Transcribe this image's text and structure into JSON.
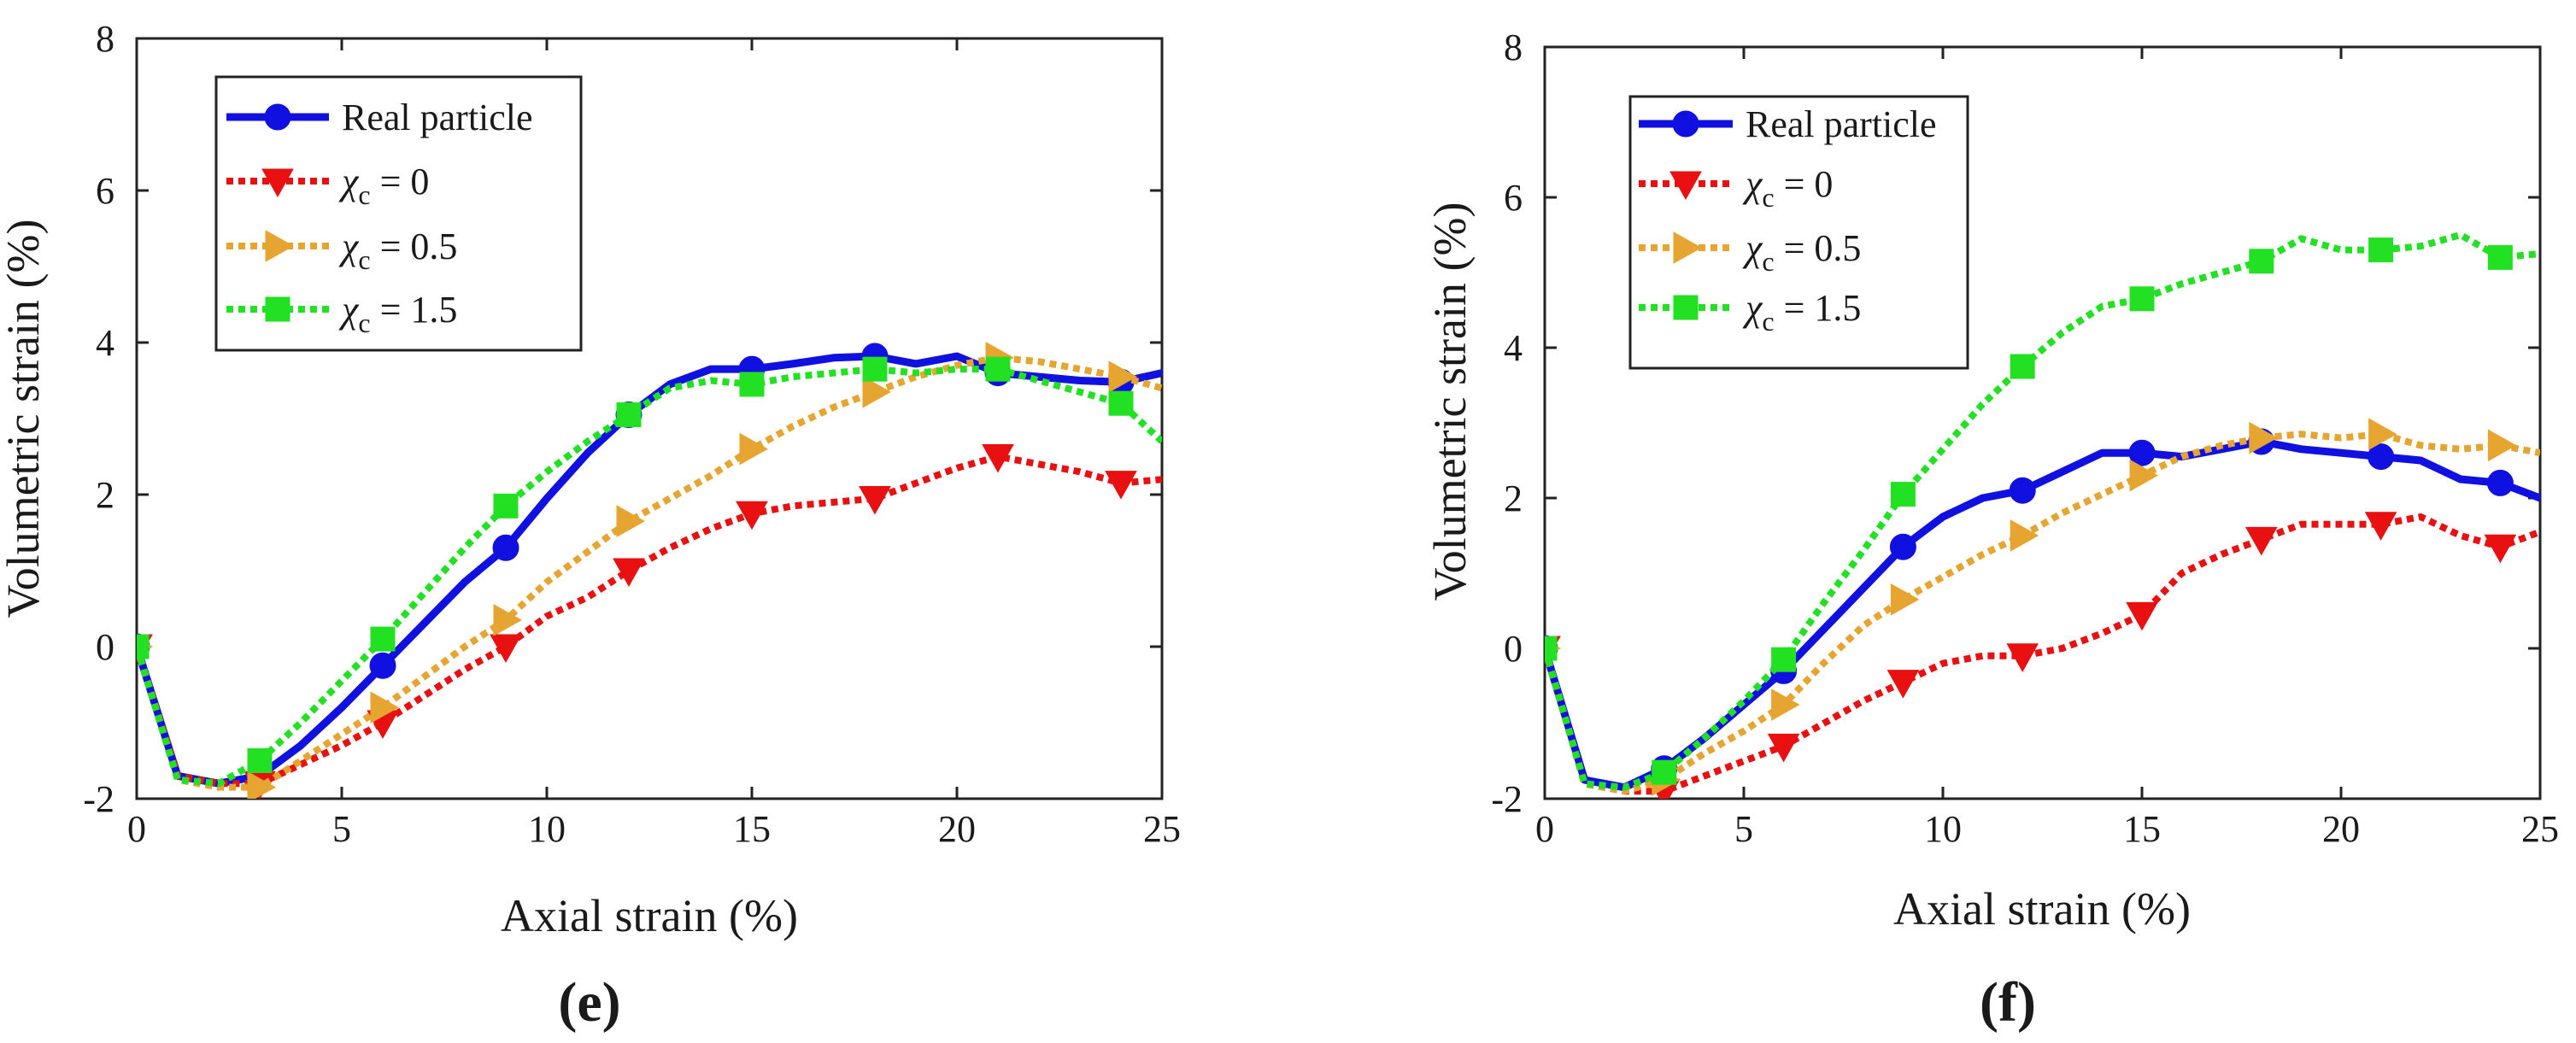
{
  "chart_data": [
    {
      "type": "line",
      "panel": "e",
      "panel_label": "(e)",
      "xlabel": "Axial strain (%)",
      "ylabel": "Volumetric strain (%)",
      "xlim": [
        0,
        25
      ],
      "ylim": [
        -2,
        8
      ],
      "xticks": [
        "0",
        "5",
        "10",
        "15",
        "20",
        "25"
      ],
      "yticks": [
        "-2",
        "0",
        "2",
        "4",
        "6",
        "8"
      ],
      "legend_position": "top-left",
      "series": [
        {
          "name": "Real particle",
          "name_main": "Real particle",
          "name_sub": "",
          "name_value": "",
          "color": "#1010e0",
          "style": "solid",
          "marker": "circle",
          "x": [
            0,
            1,
            2,
            3,
            4,
            5,
            6,
            7,
            8,
            9,
            10,
            11,
            12,
            13,
            14,
            15,
            16,
            17,
            18,
            19,
            20,
            21,
            22,
            23,
            24,
            25
          ],
          "y": [
            0,
            -1.7,
            -1.8,
            -1.7,
            -1.3,
            -0.8,
            -0.25,
            0.3,
            0.85,
            1.3,
            1.95,
            2.55,
            3.05,
            3.45,
            3.65,
            3.65,
            3.72,
            3.8,
            3.82,
            3.72,
            3.82,
            3.6,
            3.55,
            3.5,
            3.48,
            3.6
          ],
          "marker_x": [
            0,
            3,
            6,
            9,
            12,
            15,
            18,
            21,
            24
          ]
        },
        {
          "name": "χc = 0",
          "name_main": "χ",
          "name_sub": "c",
          "name_value": " = 0",
          "color": "#e81010",
          "style": "dotted",
          "marker": "triangle-down",
          "x": [
            0,
            1,
            2,
            3,
            4,
            5,
            6,
            7,
            8,
            9,
            10,
            11,
            12,
            13,
            14,
            15,
            16,
            17,
            18,
            19,
            20,
            21,
            22,
            23,
            24,
            25
          ],
          "y": [
            0,
            -1.7,
            -1.8,
            -1.8,
            -1.55,
            -1.3,
            -1.0,
            -0.65,
            -0.3,
            0.0,
            0.4,
            0.65,
            1.0,
            1.3,
            1.55,
            1.75,
            1.85,
            1.9,
            1.95,
            2.15,
            2.35,
            2.5,
            2.4,
            2.3,
            2.15,
            2.2
          ],
          "marker_x": [
            0,
            3,
            6,
            9,
            12,
            15,
            18,
            21,
            24
          ]
        },
        {
          "name": "χc = 0.5",
          "name_main": "χ",
          "name_sub": "c",
          "name_value": " = 0.5",
          "color": "#e6a530",
          "style": "dotted",
          "marker": "triangle-right",
          "x": [
            0,
            1,
            2,
            3,
            4,
            5,
            6,
            7,
            8,
            9,
            10,
            11,
            12,
            13,
            14,
            15,
            16,
            17,
            18,
            19,
            20,
            21,
            22,
            23,
            24,
            25
          ],
          "y": [
            0,
            -1.75,
            -1.85,
            -1.85,
            -1.5,
            -1.15,
            -0.8,
            -0.4,
            0.0,
            0.35,
            0.85,
            1.25,
            1.65,
            1.95,
            2.25,
            2.6,
            2.9,
            3.15,
            3.35,
            3.55,
            3.7,
            3.8,
            3.75,
            3.65,
            3.55,
            3.4
          ],
          "marker_x": [
            0,
            3,
            6,
            9,
            12,
            15,
            18,
            21,
            24
          ]
        },
        {
          "name": "χc = 1.5",
          "name_main": "χ",
          "name_sub": "c",
          "name_value": " = 1.5",
          "color": "#22e022",
          "style": "dotted",
          "marker": "square",
          "x": [
            0,
            1,
            2,
            3,
            4,
            5,
            6,
            7,
            8,
            9,
            10,
            11,
            12,
            13,
            14,
            15,
            16,
            17,
            18,
            19,
            20,
            21,
            22,
            23,
            24,
            25
          ],
          "y": [
            0,
            -1.75,
            -1.8,
            -1.5,
            -1.0,
            -0.45,
            0.1,
            0.7,
            1.3,
            1.85,
            2.3,
            2.7,
            3.05,
            3.4,
            3.5,
            3.45,
            3.55,
            3.6,
            3.65,
            3.6,
            3.65,
            3.65,
            3.5,
            3.35,
            3.2,
            2.7
          ],
          "marker_x": [
            0,
            3,
            6,
            9,
            12,
            15,
            18,
            21,
            24
          ]
        }
      ]
    },
    {
      "type": "line",
      "panel": "f",
      "panel_label": "(f)",
      "xlabel": "Axial strain (%)",
      "ylabel": "Volumetric strain (%)",
      "xlim": [
        0,
        25
      ],
      "ylim": [
        -2,
        8
      ],
      "xticks": [
        "0",
        "5",
        "10",
        "15",
        "20",
        "25"
      ],
      "yticks": [
        "-2",
        "0",
        "2",
        "4",
        "6",
        "8"
      ],
      "legend_position": "top-left",
      "series": [
        {
          "name": "Real particle",
          "name_main": "Real particle",
          "name_sub": "",
          "name_value": "",
          "color": "#1010e0",
          "style": "solid",
          "marker": "circle",
          "x": [
            0,
            1,
            2,
            3,
            4,
            5,
            6,
            7,
            8,
            9,
            10,
            11,
            12,
            13,
            14,
            15,
            16,
            17,
            18,
            19,
            20,
            21,
            22,
            23,
            24,
            25
          ],
          "y": [
            0,
            -1.75,
            -1.85,
            -1.6,
            -1.2,
            -0.75,
            -0.3,
            0.25,
            0.8,
            1.35,
            1.75,
            2.0,
            2.1,
            2.35,
            2.6,
            2.6,
            2.55,
            2.65,
            2.75,
            2.65,
            2.6,
            2.55,
            2.5,
            2.25,
            2.2,
            2.0
          ],
          "marker_x": [
            0,
            3,
            6,
            9,
            12,
            15,
            18,
            21,
            24
          ]
        },
        {
          "name": "χc = 0",
          "name_main": "χ",
          "name_sub": "c",
          "name_value": " = 0",
          "color": "#e81010",
          "style": "dotted",
          "marker": "triangle-down",
          "x": [
            0,
            1,
            2,
            3,
            4,
            5,
            6,
            7,
            8,
            9,
            10,
            11,
            12,
            13,
            14,
            15,
            16,
            17,
            18,
            19,
            20,
            21,
            22,
            23,
            24,
            25
          ],
          "y": [
            0,
            -1.8,
            -1.9,
            -1.9,
            -1.7,
            -1.5,
            -1.3,
            -1.0,
            -0.7,
            -0.45,
            -0.2,
            -0.1,
            -0.1,
            0.0,
            0.2,
            0.45,
            1.0,
            1.25,
            1.45,
            1.65,
            1.65,
            1.65,
            1.75,
            1.5,
            1.35,
            1.55
          ],
          "marker_x": [
            0,
            3,
            6,
            9,
            12,
            15,
            18,
            21,
            24
          ]
        },
        {
          "name": "χc = 0.5",
          "name_main": "χ",
          "name_sub": "c",
          "name_value": " = 0.5",
          "color": "#e6a530",
          "style": "dotted",
          "marker": "triangle-right",
          "x": [
            0,
            1,
            2,
            3,
            4,
            5,
            6,
            7,
            8,
            9,
            10,
            11,
            12,
            13,
            14,
            15,
            16,
            17,
            18,
            19,
            20,
            21,
            22,
            23,
            24,
            25
          ],
          "y": [
            0,
            -1.8,
            -1.9,
            -1.75,
            -1.4,
            -1.1,
            -0.75,
            -0.2,
            0.3,
            0.65,
            0.95,
            1.25,
            1.5,
            1.8,
            2.05,
            2.3,
            2.55,
            2.7,
            2.8,
            2.85,
            2.8,
            2.85,
            2.7,
            2.65,
            2.7,
            2.6
          ],
          "marker_x": [
            0,
            3,
            6,
            9,
            12,
            15,
            18,
            21,
            24
          ]
        },
        {
          "name": "χc = 1.5",
          "name_main": "χ",
          "name_sub": "c",
          "name_value": " = 1.5",
          "color": "#22e022",
          "style": "dotted",
          "marker": "square",
          "x": [
            0,
            1,
            2,
            3,
            4,
            5,
            6,
            7,
            8,
            9,
            10,
            11,
            12,
            13,
            14,
            15,
            16,
            17,
            18,
            19,
            20,
            21,
            22,
            23,
            24,
            25
          ],
          "y": [
            0,
            -1.8,
            -1.85,
            -1.65,
            -1.2,
            -0.7,
            -0.15,
            0.6,
            1.3,
            2.05,
            2.65,
            3.25,
            3.75,
            4.2,
            4.55,
            4.65,
            4.85,
            5.0,
            5.15,
            5.45,
            5.3,
            5.3,
            5.35,
            5.5,
            5.2,
            5.25
          ],
          "marker_x": [
            0,
            3,
            6,
            9,
            12,
            15,
            18,
            21,
            24
          ]
        }
      ]
    }
  ]
}
